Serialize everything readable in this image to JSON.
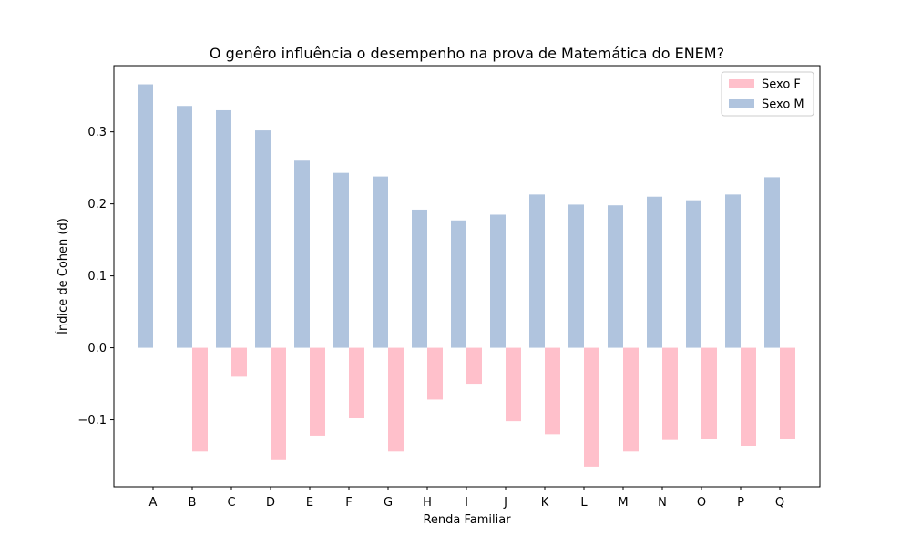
{
  "chart_data": {
    "type": "bar",
    "title": "O genêro influência o desempenho na prova de Matemática do ENEM?",
    "xlabel": "Renda Familiar",
    "ylabel": "Índice de Cohen (d)",
    "categories": [
      "A",
      "B",
      "C",
      "D",
      "E",
      "F",
      "G",
      "H",
      "I",
      "J",
      "K",
      "L",
      "M",
      "N",
      "O",
      "P",
      "Q"
    ],
    "series": [
      {
        "name": "Sexo F",
        "color": "#ffc0cb",
        "values": [
          0.0,
          -0.144,
          -0.039,
          -0.156,
          -0.122,
          -0.098,
          -0.144,
          -0.072,
          -0.05,
          -0.102,
          -0.12,
          -0.165,
          -0.144,
          -0.128,
          -0.126,
          -0.136,
          -0.126
        ]
      },
      {
        "name": "Sexo M",
        "color": "#b0c4de",
        "values": [
          0.366,
          0.336,
          0.33,
          0.302,
          0.26,
          0.243,
          0.238,
          0.192,
          0.177,
          0.185,
          0.213,
          0.199,
          0.198,
          0.21,
          0.205,
          0.213,
          0.237
        ]
      }
    ],
    "ylim": [
      -0.193,
      0.392
    ],
    "yticks": [
      -0.1,
      0.0,
      0.1,
      0.2,
      0.3
    ],
    "ytick_labels": [
      "−0.1",
      "0.0",
      "0.1",
      "0.2",
      "0.3"
    ],
    "grid": false,
    "legend_position": "top-right"
  }
}
